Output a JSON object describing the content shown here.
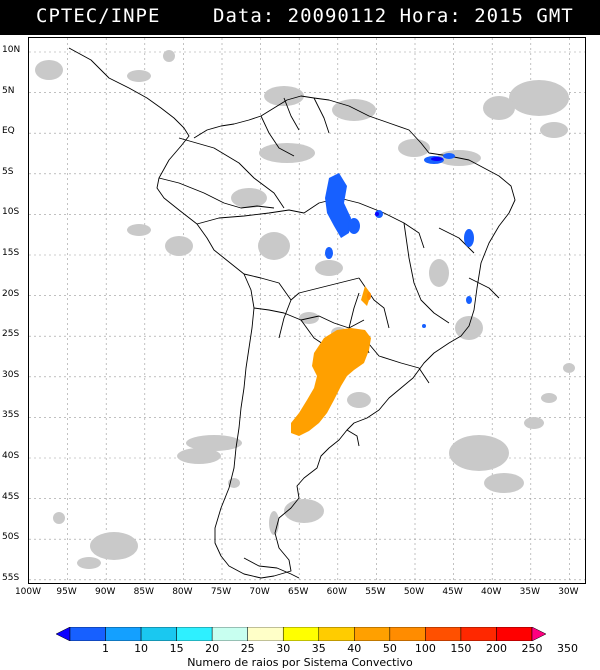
{
  "header": {
    "org": "CPTEC/INPE",
    "datetime": "Data: 20090112 Hora: 2015 GMT"
  },
  "map": {
    "lat_labels": [
      "10N",
      "5N",
      "EQ",
      "5S",
      "10S",
      "15S",
      "20S",
      "25S",
      "30S",
      "35S",
      "40S",
      "45S",
      "50S",
      "55S"
    ],
    "lon_labels": [
      "100W",
      "95W",
      "90W",
      "85W",
      "80W",
      "75W",
      "70W",
      "65W",
      "60W",
      "55W",
      "50W",
      "45W",
      "40W",
      "35W",
      "30W"
    ]
  },
  "colorbar": {
    "ticks": [
      "1",
      "10",
      "15",
      "20",
      "25",
      "30",
      "35",
      "40",
      "50",
      "100",
      "150",
      "200",
      "250",
      "350"
    ],
    "colors": [
      "#0c00ff",
      "#1760ff",
      "#14a0ff",
      "#1ac8f0",
      "#2ef0ff",
      "#c8fff0",
      "#ffffc8",
      "#ffff00",
      "#ffcc00",
      "#ffa000",
      "#ff8c00",
      "#ff5000",
      "#ff2800",
      "#ff0000",
      "#ff0080"
    ],
    "title": "Numero de raios por Sistema Convectivo"
  }
}
